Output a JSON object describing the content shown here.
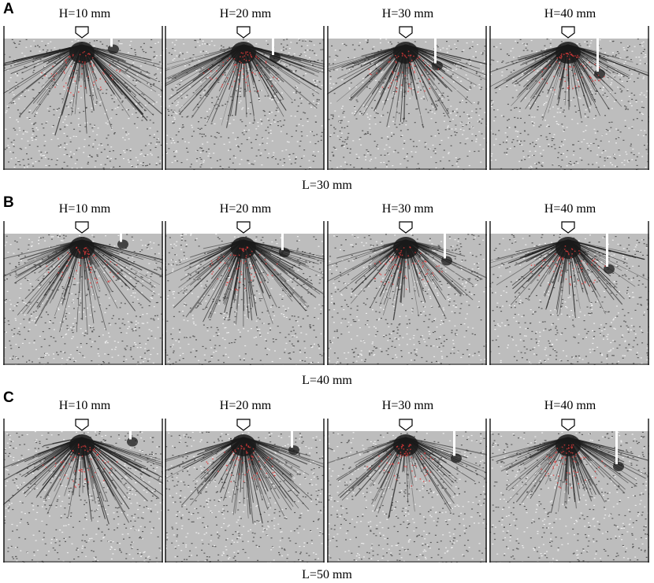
{
  "rows": [
    {
      "label": "A",
      "caption": "L=30 mm",
      "panels": [
        {
          "title": "H=10 mm",
          "depth": 10
        },
        {
          "title": "H=20 mm",
          "depth": 20
        },
        {
          "title": "H=30 mm",
          "depth": 30
        },
        {
          "title": "H=40 mm",
          "depth": 40
        }
      ]
    },
    {
      "label": "B",
      "caption": "L=40 mm",
      "panels": [
        {
          "title": "H=10 mm",
          "depth": 10
        },
        {
          "title": "H=20 mm",
          "depth": 20
        },
        {
          "title": "H=30 mm",
          "depth": 30
        },
        {
          "title": "H=40 mm",
          "depth": 40
        }
      ]
    },
    {
      "label": "C",
      "caption": "L=50 mm",
      "panels": [
        {
          "title": "H=10 mm",
          "depth": 10
        },
        {
          "title": "H=20 mm",
          "depth": 20
        },
        {
          "title": "H=30 mm",
          "depth": 30
        },
        {
          "title": "H=40 mm",
          "depth": 40
        }
      ]
    }
  ],
  "colors": {
    "granular_background": "#bdbdbd",
    "dark_particles": "#1a1a1a",
    "force_chain_red": "#e23b3b",
    "container_wall": "#222222",
    "cavity_white": "#ffffff"
  }
}
